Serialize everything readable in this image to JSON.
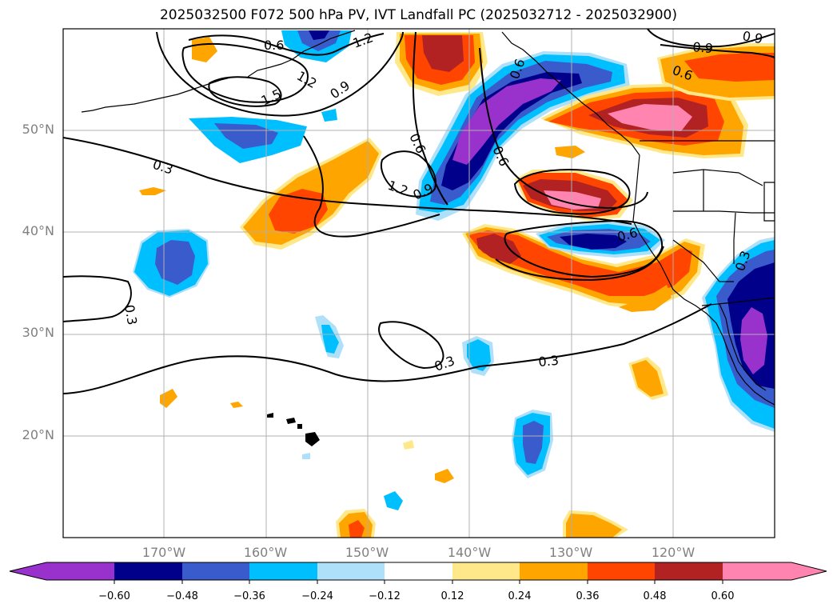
{
  "title": "2025032500 F072 500 hPa PV, IVT Landfall PC (2025032712 - 2025032900)",
  "map": {
    "lat_labels": [
      "50°N",
      "40°N",
      "30°N",
      "20°N"
    ],
    "lon_labels": [
      "170°W",
      "160°W",
      "150°W",
      "140°W",
      "130°W",
      "120°W"
    ]
  },
  "contour_labels": {
    "c1": "0.6",
    "c2": "1.2",
    "c3": "1.2",
    "c4": "1.5",
    "c5": "0.9",
    "c6": "0.3",
    "c7": "0.6",
    "c8": "0.6",
    "c9": "1.2",
    "c10": "0.9",
    "c11": "0.6",
    "c12": "0.9",
    "c13": "0.6",
    "c14": "0.6",
    "c15": "0.3",
    "c16": "0.3",
    "c17": "0.3",
    "c18": "0.3",
    "c19": "0.9"
  },
  "colorbar": {
    "ticks": [
      "−0.60",
      "−0.48",
      "−0.36",
      "−0.24",
      "−0.12",
      "0.12",
      "0.24",
      "0.36",
      "0.48",
      "0.60"
    ],
    "colors": [
      "#9932cc",
      "#00008b",
      "#3a5bcc",
      "#00bfff",
      "#aee0fa",
      "#ffffff",
      "#ffe88a",
      "#ffa500",
      "#ff4500",
      "#b22222",
      "#ff85b0"
    ]
  }
}
